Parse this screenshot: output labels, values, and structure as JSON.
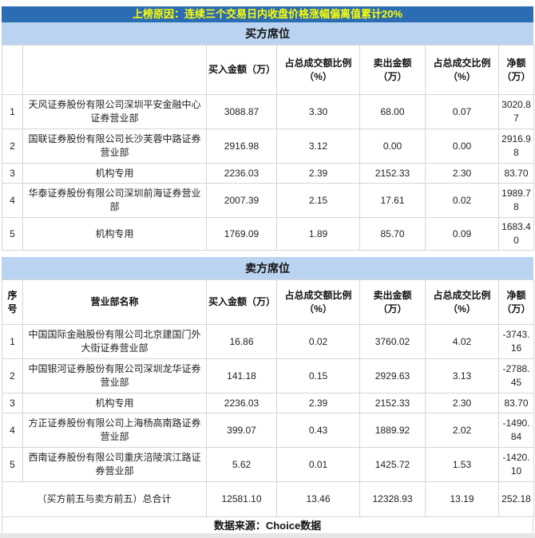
{
  "banner": {
    "reason": "上榜原因：连续三个交易日内收盘价格涨幅偏离值累计20%"
  },
  "sections": {
    "buyers_title": "买方席位",
    "sellers_title": "卖方席位"
  },
  "columns": {
    "index": "序号",
    "name": "营业部名称",
    "buy_amount": "买入金额（万）",
    "buy_ratio": "占总成交额比例（%）",
    "sell_amount": "卖出金额（万）",
    "sell_ratio": "占总成交比例（%）",
    "net": "净额（万）"
  },
  "buyers": {
    "rows": [
      {
        "index": "1",
        "name": "天风证券股份有限公司深圳平安金融中心证券营业部",
        "buy_amount": "3088.87",
        "buy_ratio": "3.30",
        "sell_amount": "68.00",
        "sell_ratio": "0.07",
        "net": "3020.87"
      },
      {
        "index": "2",
        "name": "国联证券股份有限公司长沙芙蓉中路证券营业部",
        "buy_amount": "2916.98",
        "buy_ratio": "3.12",
        "sell_amount": "0.00",
        "sell_ratio": "0.00",
        "net": "2916.98"
      },
      {
        "index": "3",
        "name": "机构专用",
        "buy_amount": "2236.03",
        "buy_ratio": "2.39",
        "sell_amount": "2152.33",
        "sell_ratio": "2.30",
        "net": "83.70"
      },
      {
        "index": "4",
        "name": "华泰证券股份有限公司深圳前海证券营业部",
        "buy_amount": "2007.39",
        "buy_ratio": "2.15",
        "sell_amount": "17.61",
        "sell_ratio": "0.02",
        "net": "1989.78"
      },
      {
        "index": "5",
        "name": "机构专用",
        "buy_amount": "1769.09",
        "buy_ratio": "1.89",
        "sell_amount": "85.70",
        "sell_ratio": "0.09",
        "net": "1683.40"
      }
    ]
  },
  "sellers": {
    "rows": [
      {
        "index": "1",
        "name": "中国国际金融股份有限公司北京建国门外大街证券营业部",
        "buy_amount": "16.86",
        "buy_ratio": "0.02",
        "sell_amount": "3760.02",
        "sell_ratio": "4.02",
        "net": "-3743.16"
      },
      {
        "index": "2",
        "name": "中国银河证券股份有限公司深圳龙华证券营业部",
        "buy_amount": "141.18",
        "buy_ratio": "0.15",
        "sell_amount": "2929.63",
        "sell_ratio": "3.13",
        "net": "-2788.45"
      },
      {
        "index": "3",
        "name": "机构专用",
        "buy_amount": "2236.03",
        "buy_ratio": "2.39",
        "sell_amount": "2152.33",
        "sell_ratio": "2.30",
        "net": "83.70"
      },
      {
        "index": "4",
        "name": "方正证券股份有限公司上海杨高南路证券营业部",
        "buy_amount": "399.07",
        "buy_ratio": "0.43",
        "sell_amount": "1889.92",
        "sell_ratio": "2.02",
        "net": "-1490.84"
      },
      {
        "index": "5",
        "name": "西南证券股份有限公司重庆涪陵滨江路证券营业部",
        "buy_amount": "5.62",
        "buy_ratio": "0.01",
        "sell_amount": "1425.72",
        "sell_ratio": "1.53",
        "net": "-1420.10"
      }
    ]
  },
  "total": {
    "label": "（买方前五与卖方前五）总合计",
    "buy_amount": "12581.10",
    "buy_ratio": "13.46",
    "sell_amount": "12328.93",
    "sell_ratio": "13.19",
    "net": "252.18"
  },
  "footer": {
    "source": "数据来源：Choice数据"
  },
  "colors": {
    "banner_bg": "#2b6cb3",
    "banner_text": "#ffff00",
    "section_bg": "#b9d3f0",
    "border": "#d6d6d6",
    "bottom_strip": "#e6e6e6"
  }
}
